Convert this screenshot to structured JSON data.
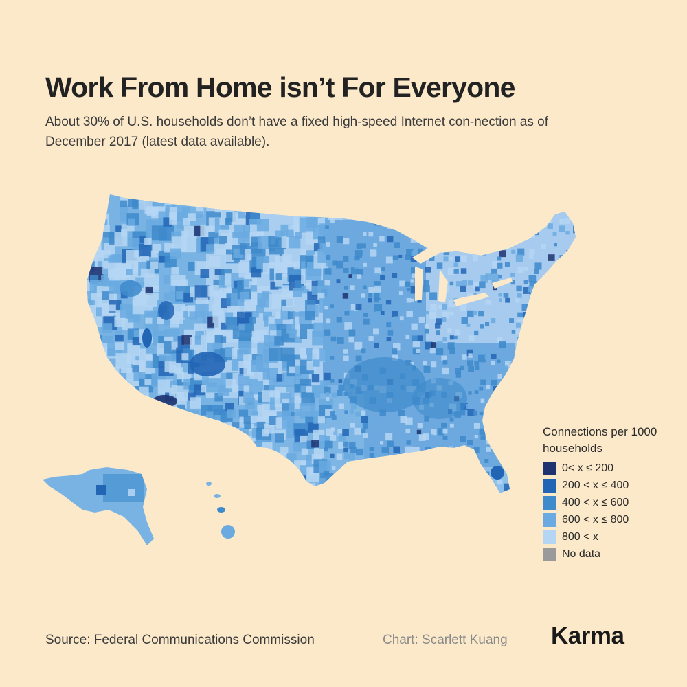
{
  "title": "Work From Home isn’t For Everyone",
  "subtitle": "About 30% of U.S. households don’t have a fixed high-speed Internet con-nection as of December 2017 (latest data available).",
  "map": {
    "regions": [
      "contiguous-us",
      "alaska",
      "hawaii"
    ],
    "dominant_classes": {
      "west-mountain": "600 < x ≤ 800",
      "plains": "800 < x",
      "south-east": "400 < x ≤ 600",
      "northeast": "800 < x"
    }
  },
  "legend": {
    "title": "Connections per 1000 households",
    "items": [
      {
        "label": "0< x ≤ 200",
        "color": "#1E3370"
      },
      {
        "label": "200 < x ≤ 400",
        "color": "#2265B5"
      },
      {
        "label": "400 < x ≤ 600",
        "color": "#3E8ACB"
      },
      {
        "label": "600 < x ≤ 800",
        "color": "#6AAAE0"
      },
      {
        "label": "800 < x",
        "color": "#B5D6F3"
      },
      {
        "label": "No data",
        "color": "#9A9A9A"
      }
    ]
  },
  "footer": {
    "source": "Source: Federal Communications Commission",
    "credit": "Chart: Scarlett Kuang",
    "brand": "Karma"
  }
}
